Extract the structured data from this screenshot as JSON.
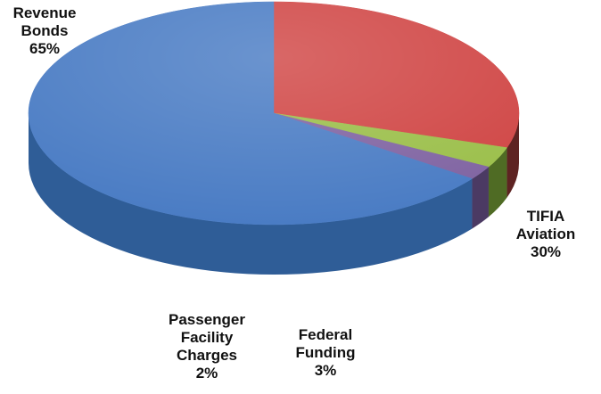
{
  "chart_data": {
    "type": "pie",
    "title": "",
    "slices": [
      {
        "name": "Revenue Bonds",
        "value": 65,
        "label_lines": [
          "Revenue",
          "Bonds",
          "65%"
        ],
        "color": "#4a7cc4",
        "side_color": "#2f5d97"
      },
      {
        "name": "TIFIA Aviation",
        "value": 30,
        "label_lines": [
          "TIFIA",
          "Aviation",
          "30%"
        ],
        "color": "#d04645",
        "side_color": "#5e2322"
      },
      {
        "name": "Federal Funding",
        "value": 3,
        "label_lines": [
          "Federal",
          "Funding",
          "3%"
        ],
        "color": "#9bbf4a",
        "side_color": "#4f6b24"
      },
      {
        "name": "Passenger Facility Charges",
        "value": 2,
        "label_lines": [
          "Passenger",
          "Facility",
          "Charges",
          "2%"
        ],
        "color": "#8064a2",
        "side_color": "#4b3a63"
      }
    ],
    "style": "3d",
    "legend": "none"
  }
}
